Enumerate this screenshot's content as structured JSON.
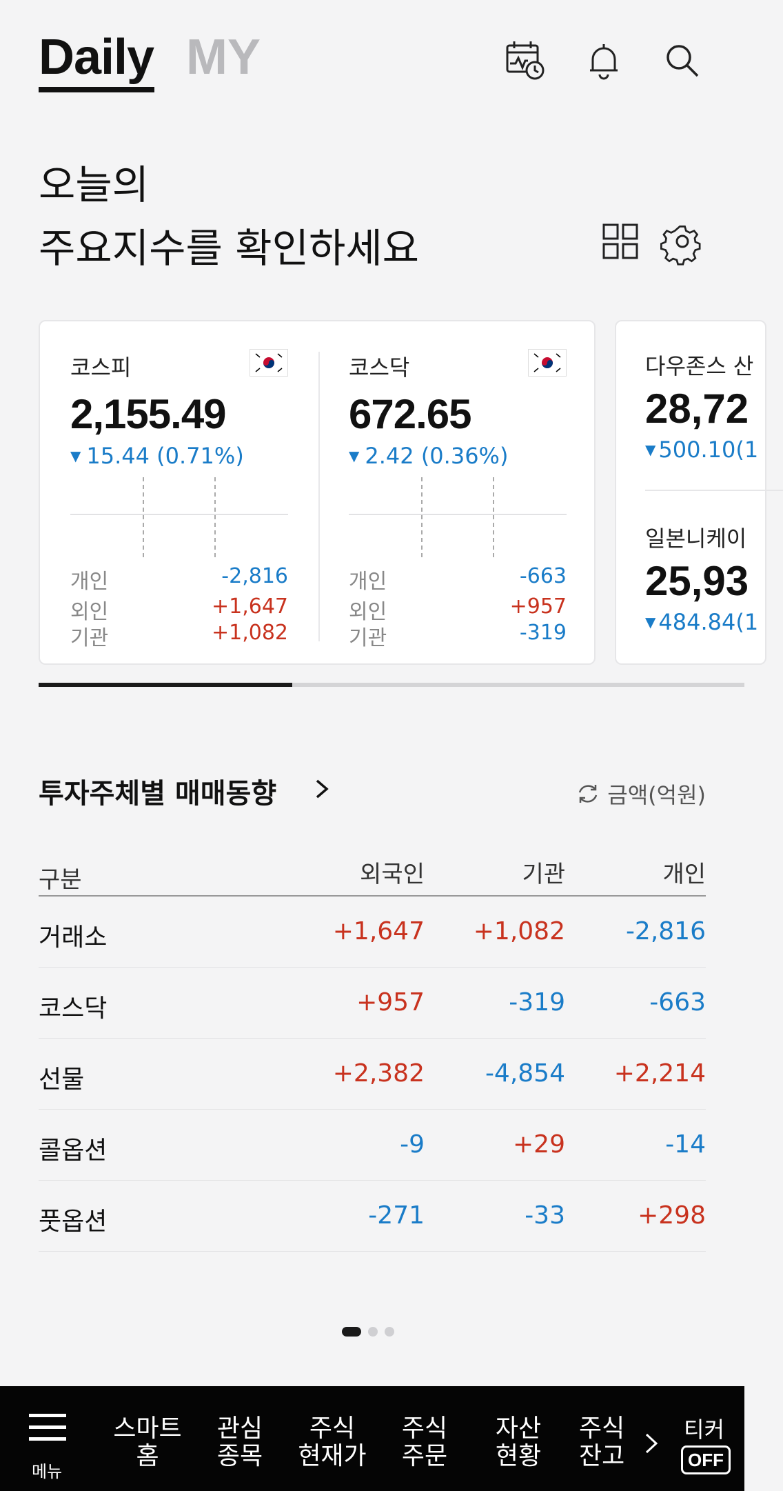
{
  "header": {
    "tab_daily": "Daily",
    "tab_my": "MY"
  },
  "headline": {
    "line1": "오늘의",
    "line2": "주요지수를 확인하세요"
  },
  "indices": {
    "kospi": {
      "name": "코스피",
      "value": "2,155.49",
      "change": "15.44",
      "change_pct": "(0.71%)",
      "direction": "down",
      "investors": [
        {
          "label": "개인",
          "value": "-2,816",
          "dir": "down"
        },
        {
          "label": "외인",
          "value": "+1,647",
          "dir": "up"
        },
        {
          "label": "기관",
          "value": "+1,082",
          "dir": "up"
        }
      ]
    },
    "kosdaq": {
      "name": "코스닥",
      "value": "672.65",
      "change": "2.42",
      "change_pct": "(0.36%)",
      "direction": "down",
      "investors": [
        {
          "label": "개인",
          "value": "-663",
          "dir": "down"
        },
        {
          "label": "외인",
          "value": "+957",
          "dir": "up"
        },
        {
          "label": "기관",
          "value": "-319",
          "dir": "down"
        }
      ]
    },
    "dow": {
      "name": "다우존스 산",
      "value": "28,72",
      "change": "500.10(1",
      "direction": "down"
    },
    "nikkei": {
      "name": "일본니케이",
      "value": "25,93",
      "change": "484.84(1",
      "direction": "down"
    }
  },
  "trend": {
    "title": "투자주체별 매매동향",
    "unit_label": "금액(억원)",
    "headers": [
      "구분",
      "외국인",
      "기관",
      "개인"
    ],
    "rows": [
      {
        "label": "거래소",
        "foreign": "+1,647",
        "inst": "+1,082",
        "indiv": "-2,816",
        "fd": "up",
        "id": "up",
        "pd": "down"
      },
      {
        "label": "코스닥",
        "foreign": "+957",
        "inst": "-319",
        "indiv": "-663",
        "fd": "up",
        "id": "down",
        "pd": "down"
      },
      {
        "label": "선물",
        "foreign": "+2,382",
        "inst": "-4,854",
        "indiv": "+2,214",
        "fd": "up",
        "id": "down",
        "pd": "up"
      },
      {
        "label": "콜옵션",
        "foreign": "-9",
        "inst": "+29",
        "indiv": "-14",
        "fd": "down",
        "id": "up",
        "pd": "down"
      },
      {
        "label": "풋옵션",
        "foreign": "-271",
        "inst": "-33",
        "indiv": "+298",
        "fd": "down",
        "id": "down",
        "pd": "up"
      }
    ]
  },
  "bottom_nav": {
    "menu": "메뉴",
    "items": [
      {
        "line1": "스마트",
        "line2": "홈"
      },
      {
        "line1": "관심",
        "line2": "종목"
      },
      {
        "line1": "주식",
        "line2": "현재가"
      },
      {
        "line1": "주식",
        "line2": "주문"
      },
      {
        "line1": "자산",
        "line2": "현황"
      },
      {
        "line1": "주식",
        "line2": "잔고"
      }
    ],
    "ticker": "티커",
    "ticker_state": "OFF"
  },
  "colors": {
    "up": "#c8321e",
    "down": "#1a7cc8"
  }
}
